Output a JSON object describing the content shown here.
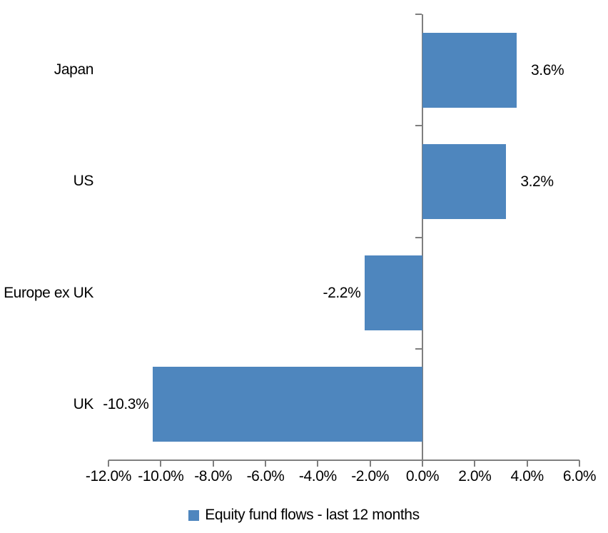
{
  "chart_data": {
    "type": "bar",
    "orientation": "horizontal",
    "title": "",
    "categories": [
      "Japan",
      "US",
      "Europe ex UK",
      "UK"
    ],
    "values": [
      3.6,
      3.2,
      -2.2,
      -10.3
    ],
    "value_labels": [
      "3.6%",
      "3.2%",
      "-2.2%",
      "-10.3%"
    ],
    "xlim": [
      -12,
      6
    ],
    "x_tick_step": 2,
    "x_tick_labels": [
      "-12.0%",
      "-10.0%",
      "-8.0%",
      "-6.0%",
      "-4.0%",
      "-2.0%",
      "0.0%",
      "2.0%",
      "4.0%",
      "6.0%"
    ],
    "grid": false,
    "legend_position": "bottom",
    "legend": [
      {
        "label": "Equity fund flows - last 12 months",
        "color": "#4E86BE"
      }
    ],
    "bar_color": "#4E86BE",
    "axis_color": "#7F7F7F",
    "text_color": "#000000"
  }
}
